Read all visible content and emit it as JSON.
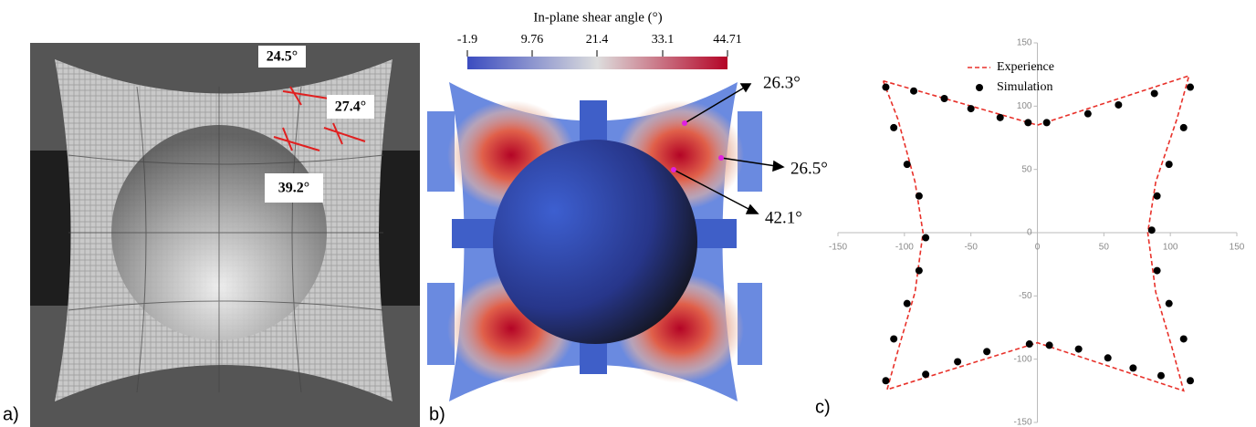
{
  "panel_a": {
    "label": "a)",
    "annotations": [
      "24.5°",
      "27.4°",
      "39.2°"
    ]
  },
  "panel_b": {
    "label": "b)",
    "colorbar_title": "In-plane shear angle (°)",
    "colorbar_ticks": [
      "-1.9",
      "9.76",
      "21.4",
      "33.1",
      "44.71"
    ],
    "annotations": [
      "26.3°",
      "26.5°",
      "42.1°"
    ]
  },
  "chart_data": {
    "type": "scatter",
    "panel_label": "c)",
    "xlim": [
      -150,
      150
    ],
    "ylim": [
      -150,
      150
    ],
    "xticks": [
      -150,
      -100,
      -50,
      0,
      50,
      100,
      150
    ],
    "yticks": [
      -150,
      -100,
      -50,
      0,
      50,
      100,
      150
    ],
    "series": [
      {
        "name": "Experience",
        "type": "line",
        "dashed": true,
        "color": "#e8312a",
        "x": [
          -116,
          0,
          114,
          105,
          89,
          83,
          89,
          101,
          110,
          0,
          -113,
          -104,
          -92,
          -86,
          -92,
          -105,
          -116
        ],
        "y": [
          120,
          85,
          124,
          90,
          40,
          0,
          -47,
          -90,
          -125,
          -87,
          -124,
          -90,
          -47,
          0,
          40,
          90,
          120
        ]
      },
      {
        "name": "Simulation",
        "type": "scatter",
        "color": "#000000",
        "x": [
          -114,
          -93,
          -70,
          -50,
          -28,
          -7,
          7,
          38,
          61,
          88,
          115,
          -108,
          -98,
          -89,
          -84,
          -89,
          -98,
          -108,
          110,
          99,
          90,
          86,
          90,
          99,
          110,
          -114,
          -84,
          -60,
          -38,
          -6,
          9,
          31,
          53,
          72,
          93,
          115
        ],
        "y": [
          115,
          112,
          106,
          98,
          91,
          87,
          87,
          94,
          101,
          110,
          115,
          83,
          54,
          29,
          -4,
          -30,
          -56,
          -84,
          83,
          54,
          29,
          2,
          -30,
          -56,
          -84,
          -117,
          -112,
          -102,
          -94,
          -88,
          -89,
          -92,
          -99,
          -107,
          -113,
          -117
        ]
      }
    ]
  }
}
